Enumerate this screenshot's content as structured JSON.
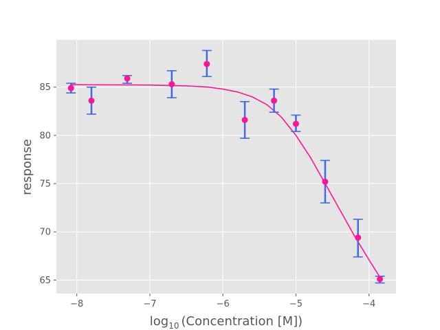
{
  "chart_data": {
    "type": "scatter",
    "xlabel_main": "log",
    "xlabel_sub": "10",
    "xlabel_rest": "(Concentration [M])",
    "ylabel": "response",
    "xlim": [
      -8.28,
      -3.63
    ],
    "ylim": [
      63.6,
      89.9
    ],
    "grid": true,
    "x_ticks": [
      -8,
      -7,
      -6,
      -5,
      -4
    ],
    "x_tick_labels": [
      "−8",
      "−7",
      "−6",
      "−5",
      "−4"
    ],
    "y_ticks": [
      65,
      70,
      75,
      80,
      85
    ],
    "y_tick_labels": [
      "65",
      "70",
      "75",
      "80",
      "85"
    ],
    "colors": {
      "background": "#e5e5e5",
      "grid": "#ffffff",
      "points": "#ff1493",
      "fit_line": "#ff1493",
      "error_bars": "#4169e1"
    },
    "points": [
      {
        "x": -8.08,
        "y": 84.9,
        "err_low": 84.4,
        "err_high": 85.4
      },
      {
        "x": -7.8,
        "y": 83.6,
        "err_low": 82.2,
        "err_high": 85.0
      },
      {
        "x": -7.31,
        "y": 85.9,
        "err_low": 85.4,
        "err_high": 86.2
      },
      {
        "x": -6.7,
        "y": 85.3,
        "err_low": 83.9,
        "err_high": 86.7
      },
      {
        "x": -6.22,
        "y": 87.4,
        "err_low": 86.1,
        "err_high": 88.8
      },
      {
        "x": -5.7,
        "y": 81.6,
        "err_low": 79.7,
        "err_high": 83.5
      },
      {
        "x": -5.3,
        "y": 83.6,
        "err_low": 82.4,
        "err_high": 84.8
      },
      {
        "x": -5.0,
        "y": 81.2,
        "err_low": 80.4,
        "err_high": 82.1
      },
      {
        "x": -4.6,
        "y": 75.2,
        "err_low": 73.0,
        "err_high": 77.4
      },
      {
        "x": -4.15,
        "y": 69.4,
        "err_low": 67.4,
        "err_high": 71.3
      },
      {
        "x": -3.85,
        "y": 65.1,
        "err_low": 64.7,
        "err_high": 65.4
      }
    ],
    "fit": {
      "x": [
        -8.08,
        -7.5,
        -7.0,
        -6.5,
        -6.2,
        -6.0,
        -5.8,
        -5.6,
        -5.4,
        -5.2,
        -5.0,
        -4.8,
        -4.6,
        -4.4,
        -4.2,
        -4.0,
        -3.85
      ],
      "y": [
        85.25,
        85.24,
        85.22,
        85.13,
        85.0,
        84.8,
        84.5,
        84.0,
        83.2,
        81.9,
        80.0,
        77.7,
        75.0,
        72.3,
        69.6,
        67.1,
        65.3
      ]
    }
  }
}
